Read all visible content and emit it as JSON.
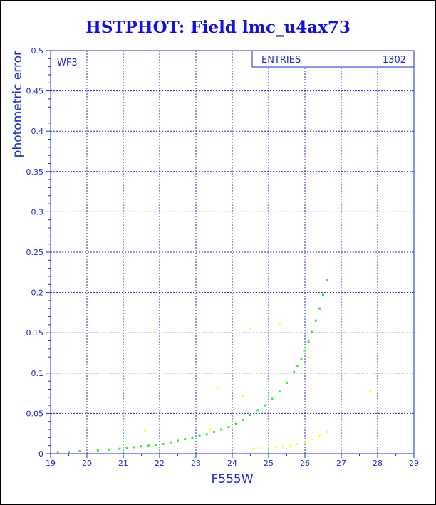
{
  "chart_data": {
    "type": "scatter",
    "title": "HSTPHOT: Field lmc_u4ax73",
    "xlabel": "F555W",
    "ylabel": "photometric error",
    "xlim": [
      19,
      29
    ],
    "ylim": [
      0,
      0.5
    ],
    "xticks": [
      "19",
      "20",
      "21",
      "22",
      "23",
      "24",
      "25",
      "26",
      "27",
      "28",
      "29"
    ],
    "yticks": [
      "0",
      "0.05",
      "0.1",
      "0.15",
      "0.2",
      "0.25",
      "0.3",
      "0.35",
      "0.4",
      "0.45",
      "0.5"
    ],
    "grid": true,
    "panel_label": "WF3",
    "stats_box": {
      "label": "ENTRIES",
      "value": "1302"
    },
    "series": [
      {
        "color": "#33ee22",
        "x": [
          19.2,
          19.5,
          19.8,
          20.3,
          20.6,
          20.9,
          21.1,
          21.3,
          21.5,
          21.7,
          21.9,
          22.1,
          22.3,
          22.5,
          22.7,
          22.9,
          23.1,
          23.3,
          23.5,
          23.7,
          23.9,
          24.1,
          24.3,
          24.5,
          24.7,
          24.9,
          25.1,
          25.3,
          25.5,
          25.7,
          25.8,
          25.9,
          26.0,
          26.1,
          26.2,
          26.3,
          26.4,
          26.5,
          26.6
        ],
        "y": [
          0.002,
          0.002,
          0.003,
          0.004,
          0.005,
          0.006,
          0.007,
          0.008,
          0.009,
          0.01,
          0.011,
          0.012,
          0.014,
          0.016,
          0.018,
          0.02,
          0.022,
          0.024,
          0.027,
          0.03,
          0.033,
          0.037,
          0.042,
          0.048,
          0.054,
          0.06,
          0.068,
          0.077,
          0.088,
          0.101,
          0.109,
          0.118,
          0.128,
          0.139,
          0.151,
          0.165,
          0.18,
          0.197,
          0.215
        ]
      },
      {
        "color": "#ffff33",
        "x": [
          24.6,
          24.8,
          25.0,
          25.2,
          25.4,
          25.6,
          25.8,
          26.0,
          26.2,
          26.4,
          26.6,
          21.6,
          23.4,
          23.6,
          24.3,
          24.5,
          25.3,
          26.1,
          27.8
        ],
        "y": [
          0.006,
          0.007,
          0.007,
          0.008,
          0.009,
          0.01,
          0.012,
          0.014,
          0.018,
          0.022,
          0.027,
          0.028,
          0.03,
          0.082,
          0.072,
          0.155,
          0.16,
          0.12,
          0.078
        ]
      }
    ]
  }
}
